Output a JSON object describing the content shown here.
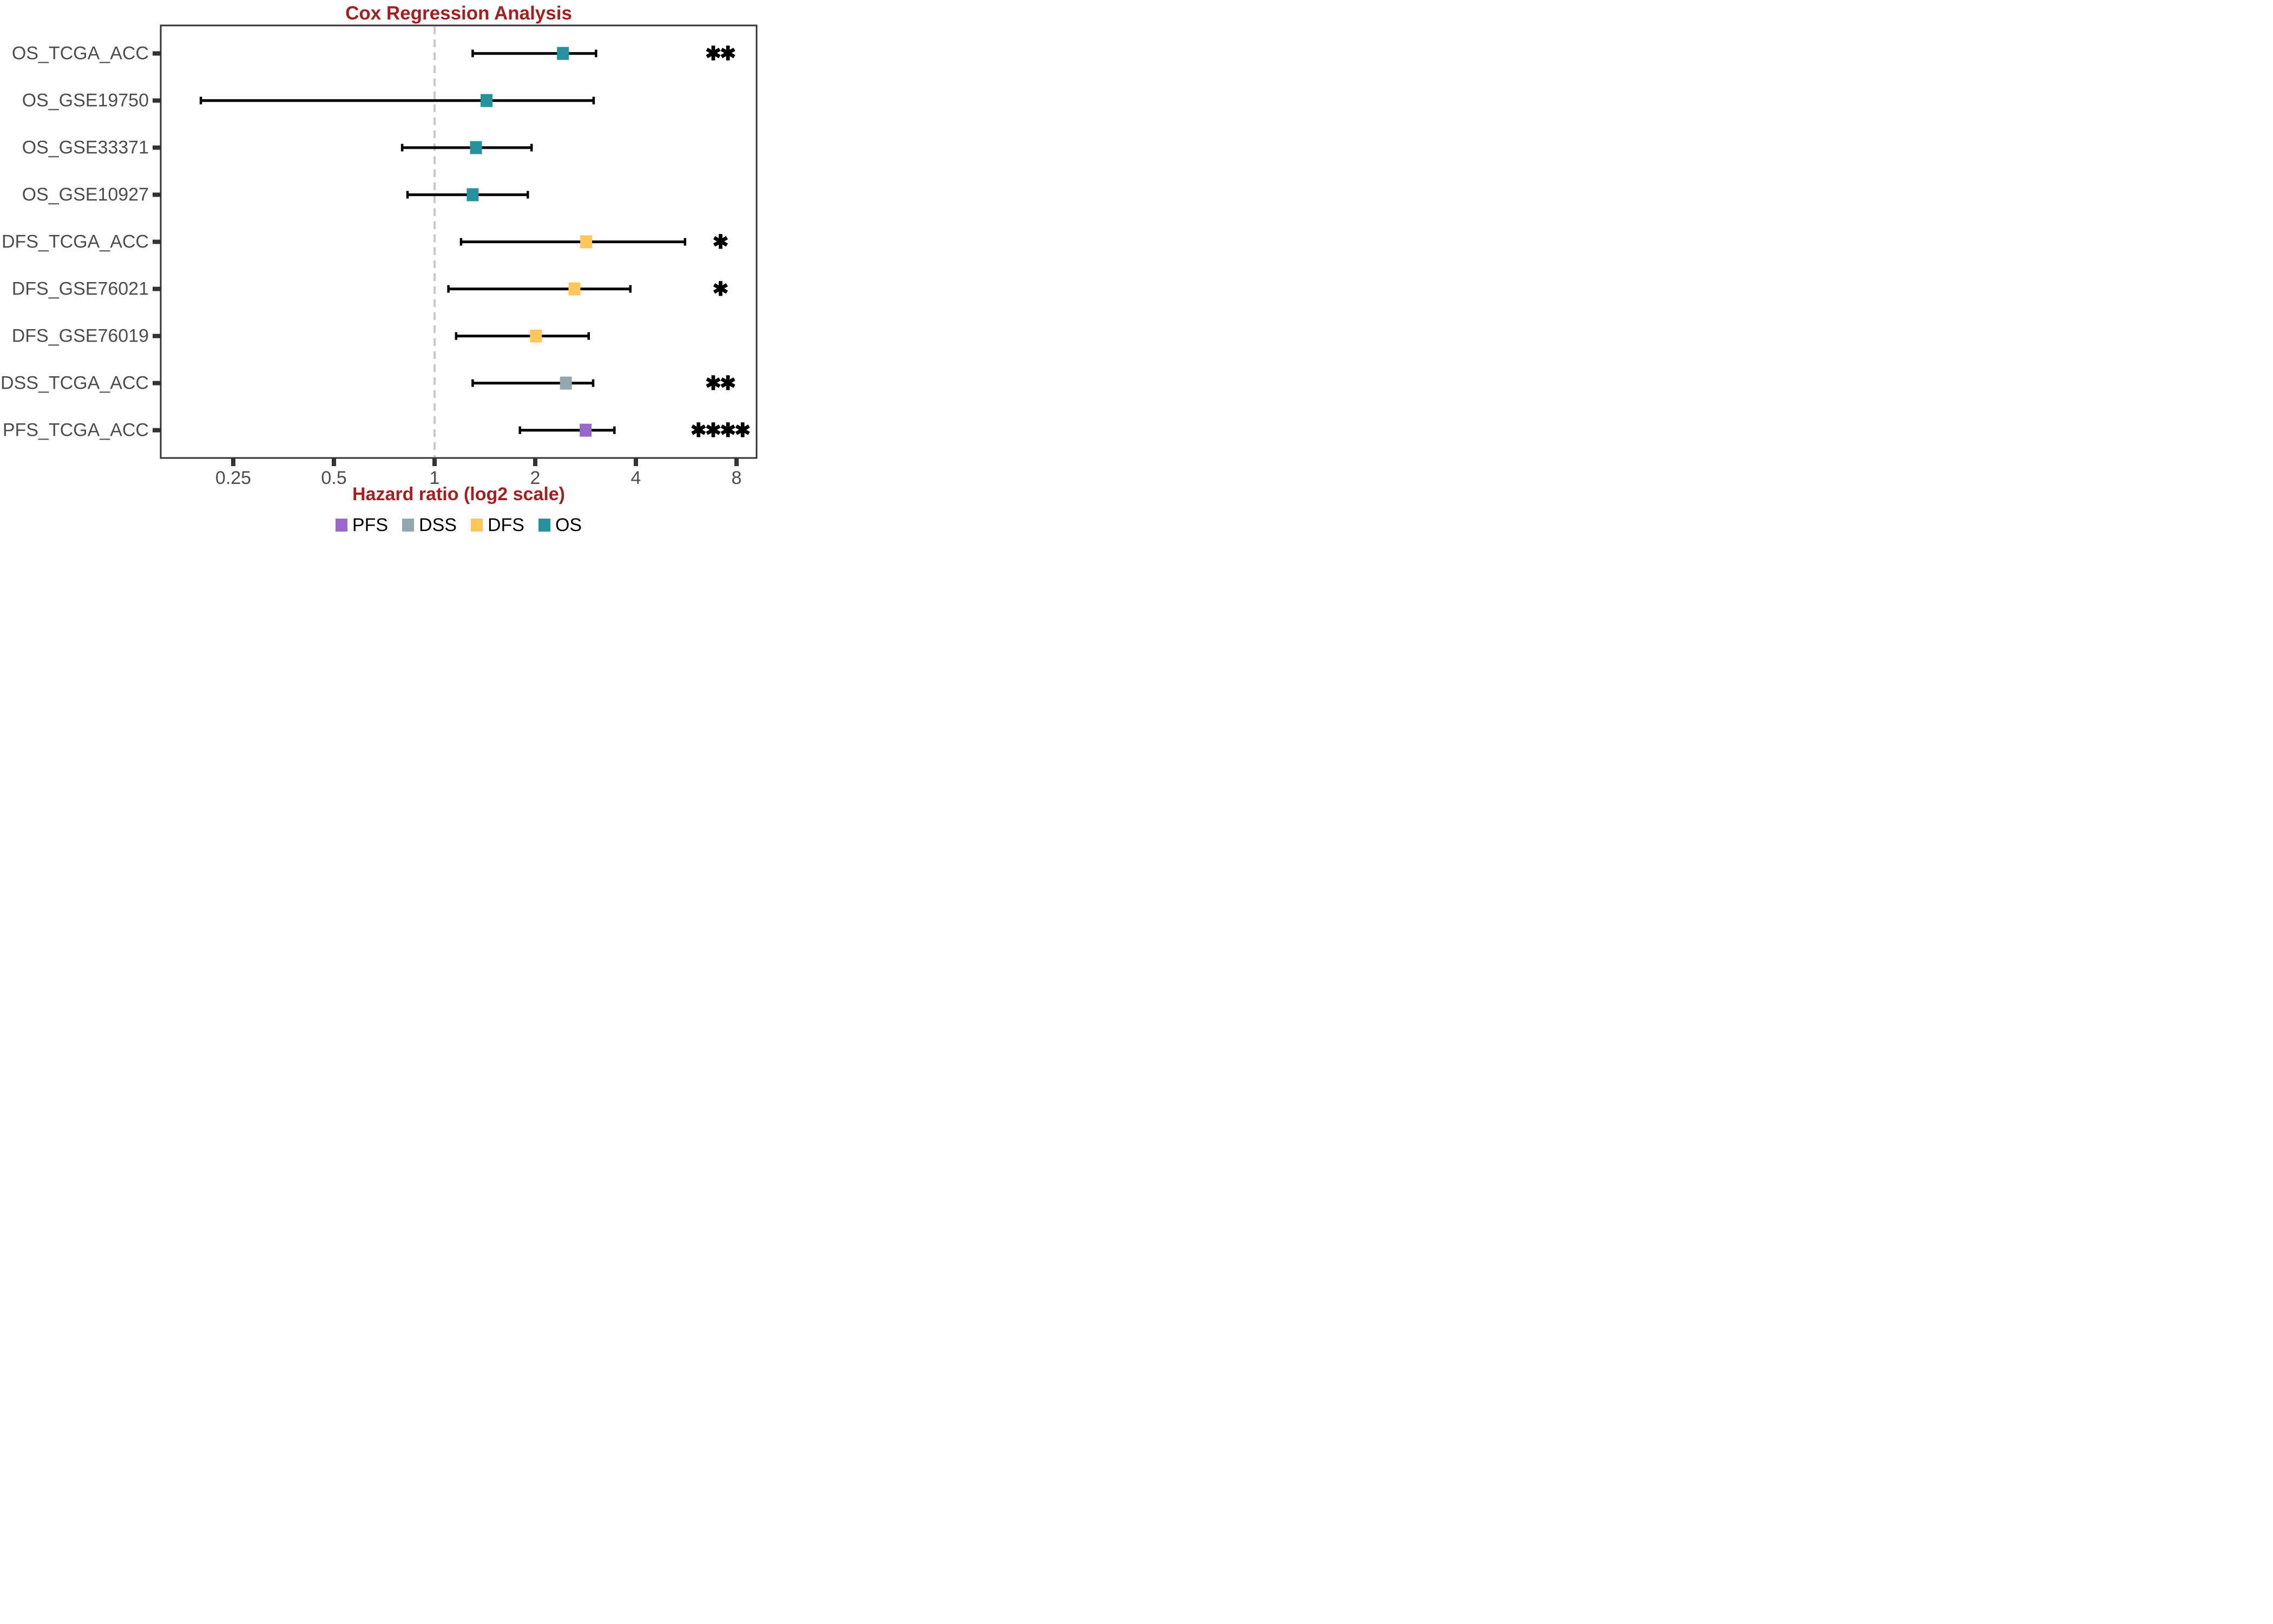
{
  "title": "Cox Regression Analysis",
  "x_axis_label": "Hazard ratio (log2 scale)",
  "colors": {
    "title_text": "#A32020",
    "axis_label_text": "#A32020",
    "axis_tick_text": "#4D4D4D",
    "panel_border": "#333333",
    "tick_mark": "#333333",
    "reference_line": "#C9C9C9",
    "error_bar": "#000000",
    "significance_star": "#000000"
  },
  "chart_data": {
    "type": "forest-scatter",
    "title": "Cox Regression Analysis",
    "xlabel": "Hazard ratio (log2 scale)",
    "x_scale": "log2",
    "x_range": [
      0.15,
      9.2
    ],
    "x_ticks": [
      0.25,
      0.5,
      1,
      2,
      4,
      8
    ],
    "x_tick_labels": [
      "0.25",
      "0.5",
      "1",
      "2",
      "4",
      "8"
    ],
    "reference_line_x": 1,
    "grid": "off",
    "legend_position": "bottom",
    "groups": [
      {
        "name": "PFS",
        "color": "#9A68CC"
      },
      {
        "name": "DSS",
        "color": "#94A7AD"
      },
      {
        "name": "DFS",
        "color": "#FEC75B"
      },
      {
        "name": "OS",
        "color": "#26939C"
      }
    ],
    "rows": [
      {
        "label": "OS_TCGA_ACC",
        "group": "OS",
        "hr": 2.42,
        "ci_low": 1.3,
        "ci_high": 3.04,
        "significance": "**"
      },
      {
        "label": "OS_GSE19750",
        "group": "OS",
        "hr": 1.43,
        "ci_low": 0.2,
        "ci_high": 2.99,
        "significance": ""
      },
      {
        "label": "OS_GSE33371",
        "group": "OS",
        "hr": 1.33,
        "ci_low": 0.8,
        "ci_high": 1.95,
        "significance": ""
      },
      {
        "label": "OS_GSE10927",
        "group": "OS",
        "hr": 1.3,
        "ci_low": 0.83,
        "ci_high": 1.9,
        "significance": ""
      },
      {
        "label": "DFS_TCGA_ACC",
        "group": "DFS",
        "hr": 2.84,
        "ci_low": 1.2,
        "ci_high": 5.61,
        "significance": "*"
      },
      {
        "label": "DFS_GSE76021",
        "group": "DFS",
        "hr": 2.62,
        "ci_low": 1.1,
        "ci_high": 3.85,
        "significance": "*"
      },
      {
        "label": "DFS_GSE76019",
        "group": "DFS",
        "hr": 2.01,
        "ci_low": 1.16,
        "ci_high": 2.89,
        "significance": ""
      },
      {
        "label": "DSS_TCGA_ACC",
        "group": "DSS",
        "hr": 2.47,
        "ci_low": 1.3,
        "ci_high": 2.98,
        "significance": "**"
      },
      {
        "label": "PFS_TCGA_ACC",
        "group": "PFS",
        "hr": 2.83,
        "ci_low": 1.8,
        "ci_high": 3.45,
        "significance": "****"
      }
    ]
  }
}
